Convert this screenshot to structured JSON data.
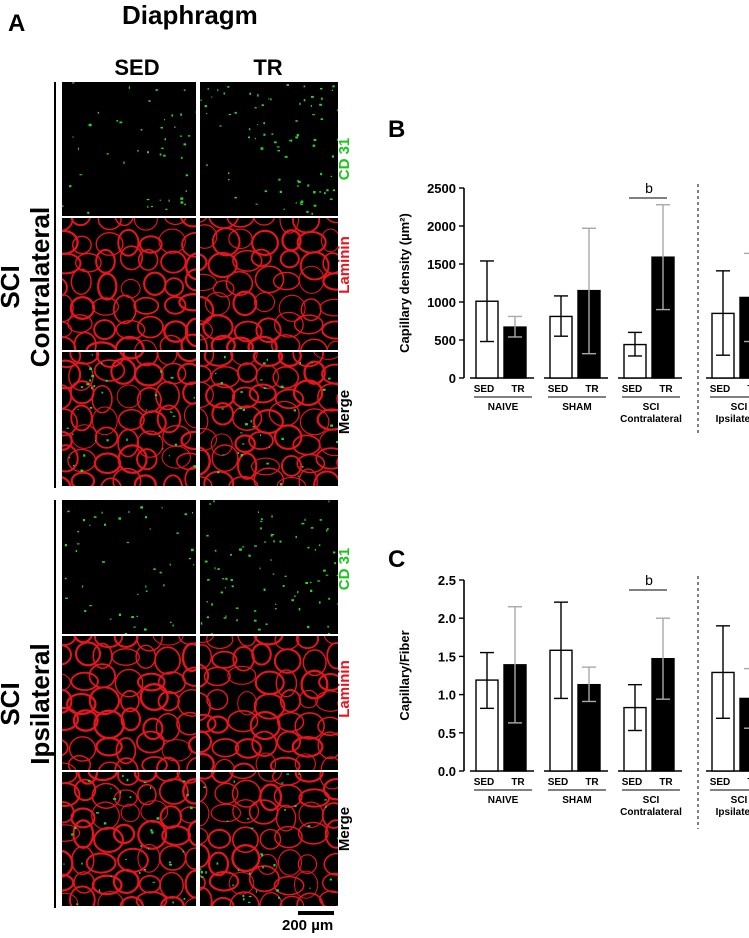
{
  "figure": {
    "panel_a_letter": "A",
    "panel_a_title": "Diaphragm",
    "columns": [
      "SED",
      "TR"
    ],
    "groups": [
      {
        "line1": "SCI",
        "line2": "Contralateral"
      },
      {
        "line1": "SCI",
        "line2": "Ipsilateral"
      }
    ],
    "stains": [
      {
        "label": "CD 31",
        "color": "#16c816"
      },
      {
        "label": "Laminin",
        "color": "#e8141e"
      },
      {
        "label": "Merge",
        "color": "#000000"
      }
    ],
    "scale_bar_label": "200 µm",
    "micrograph_colors": {
      "background": "#000000",
      "laminin": "#e8141e",
      "cd31": "#2fd12f"
    }
  },
  "chart_data": [
    {
      "panel_letter": "B",
      "type": "bar",
      "ylabel": "Capillary density (µm²)",
      "ylim": [
        0,
        2500
      ],
      "yticks": [
        0,
        500,
        1000,
        1500,
        2000,
        2500
      ],
      "groups": [
        {
          "name": "NAIVE",
          "sublabels": [
            "SED",
            "TR"
          ],
          "values": [
            1010,
            670
          ],
          "err_low": [
            480,
            540
          ],
          "err_high": [
            1540,
            810
          ]
        },
        {
          "name": "SHAM",
          "sublabels": [
            "SED",
            "TR"
          ],
          "values": [
            810,
            1150
          ],
          "err_low": [
            550,
            320
          ],
          "err_high": [
            1080,
            1970
          ]
        },
        {
          "name": "SCI\nContralateral",
          "sublabels": [
            "SED",
            "TR"
          ],
          "values": [
            440,
            1590
          ],
          "err_low": [
            290,
            900
          ],
          "err_high": [
            600,
            2280
          ]
        },
        {
          "name": "SCI\nIpsilateral",
          "sublabels": [
            "SED",
            "TR"
          ],
          "values": [
            850,
            1060
          ],
          "err_low": [
            300,
            480
          ],
          "err_high": [
            1410,
            1640
          ]
        }
      ],
      "bar_colors": {
        "SED": "#ffffff",
        "TR": "#000000"
      },
      "significance": {
        "group": 2,
        "label": "b"
      }
    },
    {
      "panel_letter": "C",
      "type": "bar",
      "ylabel": "Capillary/Fiber",
      "ylim": [
        0,
        2.5
      ],
      "yticks": [
        "0.0",
        "0.5",
        "1.0",
        "1.5",
        "2.0",
        "2.5"
      ],
      "groups": [
        {
          "name": "NAIVE",
          "sublabels": [
            "SED",
            "TR"
          ],
          "values": [
            1.19,
            1.39
          ],
          "err_low": [
            0.82,
            0.63
          ],
          "err_high": [
            1.55,
            2.15
          ]
        },
        {
          "name": "SHAM",
          "sublabels": [
            "SED",
            "TR"
          ],
          "values": [
            1.58,
            1.13
          ],
          "err_low": [
            0.95,
            0.91
          ],
          "err_high": [
            2.21,
            1.36
          ]
        },
        {
          "name": "SCI\nContralateral",
          "sublabels": [
            "SED",
            "TR"
          ],
          "values": [
            0.83,
            1.47
          ],
          "err_low": [
            0.53,
            0.94
          ],
          "err_high": [
            1.13,
            2.0
          ]
        },
        {
          "name": "SCI\nIpsilateral",
          "sublabels": [
            "SED",
            "TR"
          ],
          "values": [
            1.29,
            0.95
          ],
          "err_low": [
            0.69,
            0.56
          ],
          "err_high": [
            1.9,
            1.34
          ]
        }
      ],
      "bar_colors": {
        "SED": "#ffffff",
        "TR": "#000000"
      },
      "significance": {
        "group": 2,
        "label": "b"
      }
    }
  ]
}
